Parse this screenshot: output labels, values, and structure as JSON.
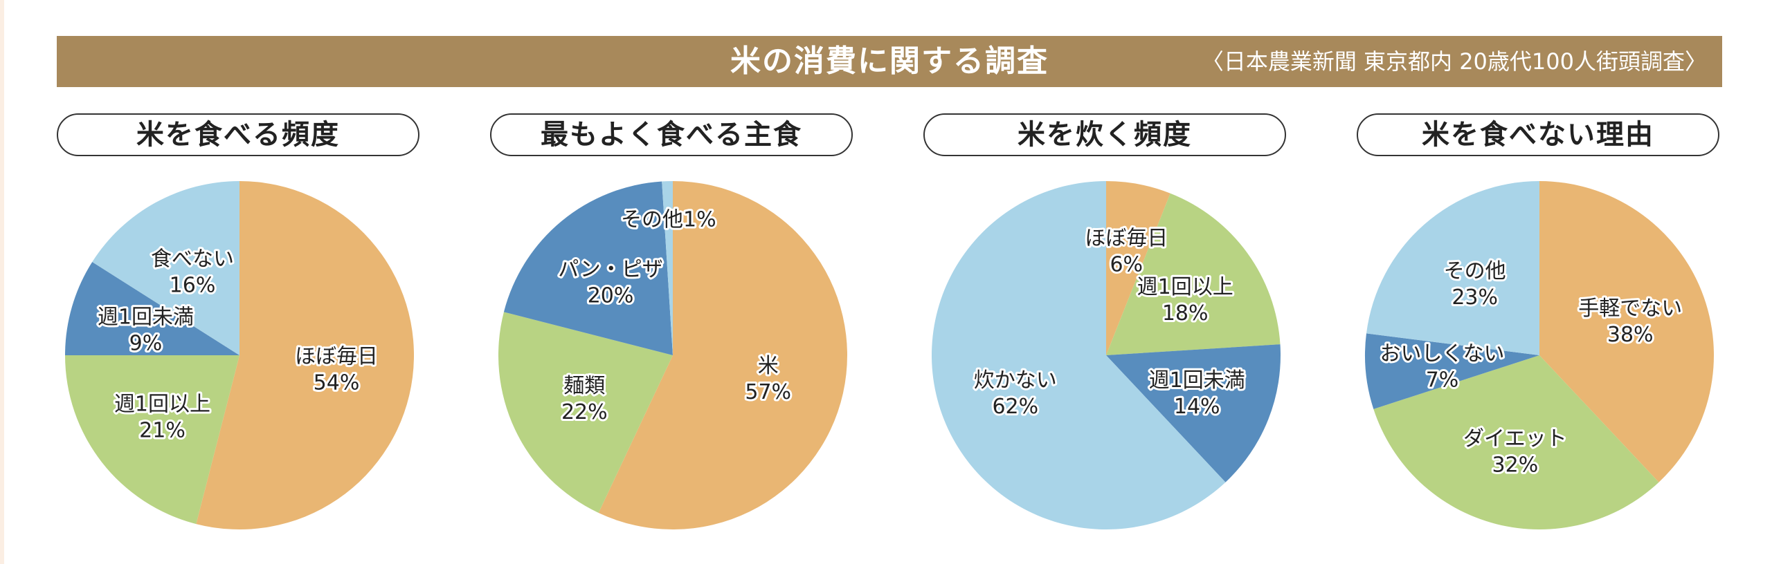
{
  "header": {
    "title": "米の消費に関する調査",
    "source": "〈日本農業新聞 東京都内 20歳代100人街頭調査〉"
  },
  "colors": {
    "header_bg": "#a8895b",
    "orange": "#e9b673",
    "green": "#b8d383",
    "blue": "#588dbe",
    "light_blue": "#a9d4e8"
  },
  "chart_data": [
    {
      "type": "pie",
      "title": "米を食べる頻度",
      "slices": [
        {
          "label": "ほぼ毎日",
          "value": 54,
          "value_label": "54%",
          "color": "#e9b673"
        },
        {
          "label": "週1回以上",
          "value": 21,
          "value_label": "21%",
          "color": "#b8d383"
        },
        {
          "label": "週1回未満",
          "value": 9,
          "value_label": "9%",
          "color": "#588dbe"
        },
        {
          "label": "食べない",
          "value": 16,
          "value_label": "16%",
          "color": "#a9d4e8"
        }
      ]
    },
    {
      "type": "pie",
      "title": "最もよく食べる主食",
      "slices": [
        {
          "label": "米",
          "value": 57,
          "value_label": "57%",
          "color": "#e9b673"
        },
        {
          "label": "麺類",
          "value": 22,
          "value_label": "22%",
          "color": "#b8d383"
        },
        {
          "label": "パン・ピザ",
          "value": 20,
          "value_label": "20%",
          "color": "#588dbe"
        },
        {
          "label": "その他",
          "value": 1,
          "value_label": "1%",
          "color": "#a9d4e8"
        }
      ]
    },
    {
      "type": "pie",
      "title": "米を炊く頻度",
      "slices": [
        {
          "label": "ほぼ毎日",
          "value": 6,
          "value_label": "6%",
          "color": "#e9b673"
        },
        {
          "label": "週1回以上",
          "value": 18,
          "value_label": "18%",
          "color": "#b8d383"
        },
        {
          "label": "週1回未満",
          "value": 14,
          "value_label": "14%",
          "color": "#588dbe"
        },
        {
          "label": "炊かない",
          "value": 62,
          "value_label": "62%",
          "color": "#a9d4e8"
        }
      ]
    },
    {
      "type": "pie",
      "title": "米を食べない理由",
      "slices": [
        {
          "label": "手軽でない",
          "value": 38,
          "value_label": "38%",
          "color": "#e9b673"
        },
        {
          "label": "ダイエット",
          "value": 32,
          "value_label": "32%",
          "color": "#b8d383"
        },
        {
          "label": "おいしくない",
          "value": 7,
          "value_label": "7%",
          "color": "#588dbe"
        },
        {
          "label": "その他",
          "value": 23,
          "value_label": "23%",
          "color": "#a9d4e8"
        }
      ]
    }
  ]
}
